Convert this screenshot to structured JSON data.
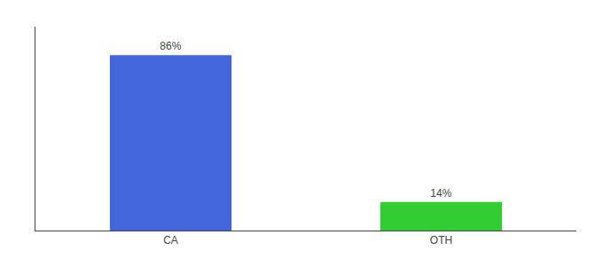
{
  "chart_data": {
    "type": "bar",
    "categories": [
      "CA",
      "OTH"
    ],
    "values": [
      86,
      14
    ],
    "value_labels": [
      "86%",
      "14%"
    ],
    "colors": [
      "#4466dd",
      "#33cc33"
    ],
    "ylim": [
      0,
      100
    ],
    "data_labels": true,
    "tick_labels": "x",
    "grid": false
  }
}
